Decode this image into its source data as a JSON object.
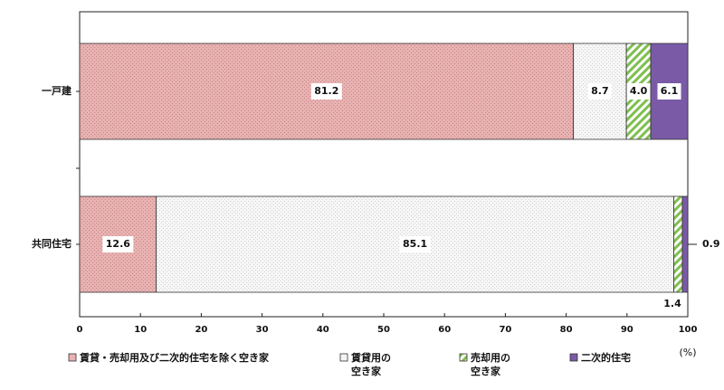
{
  "chart_data": {
    "type": "bar",
    "orientation": "horizontal",
    "stacked": true,
    "categories": [
      "一戸建",
      "共同住宅"
    ],
    "series": [
      {
        "name": "賃貸・売却用及び二次的住宅を除く空き家",
        "values": [
          81.2,
          12.6
        ],
        "labels": [
          "81.2",
          "12.6"
        ],
        "color": "#e8b4b4",
        "pattern": "dots"
      },
      {
        "name": "賃貸用の空き家",
        "values": [
          8.7,
          85.1
        ],
        "labels": [
          "8.7",
          "85.1"
        ],
        "color": "#f2f2f2",
        "pattern": "dots"
      },
      {
        "name": "売却用の空き家",
        "values": [
          4.0,
          1.4
        ],
        "labels": [
          "4.0",
          "1.4"
        ],
        "color": "#7fbf4f",
        "pattern": "hatch"
      },
      {
        "name": "二次的住宅",
        "values": [
          6.1,
          0.9
        ],
        "labels": [
          "6.1",
          "0.9"
        ],
        "color": "#7a5aa6",
        "pattern": "solid"
      }
    ],
    "xlim": [
      0,
      100
    ],
    "xticks": [
      "0",
      "10",
      "20",
      "30",
      "40",
      "50",
      "60",
      "70",
      "80",
      "90",
      "100"
    ],
    "unit_label": "(%)",
    "legend_position": "bottom",
    "legend_labels": [
      [
        "賃貸・売却用及び二次的住宅を除く空き家"
      ],
      [
        "賃貸用の",
        "空き家"
      ],
      [
        "売却用の",
        "空き家"
      ],
      [
        "二次的住宅"
      ]
    ],
    "grid": false
  }
}
